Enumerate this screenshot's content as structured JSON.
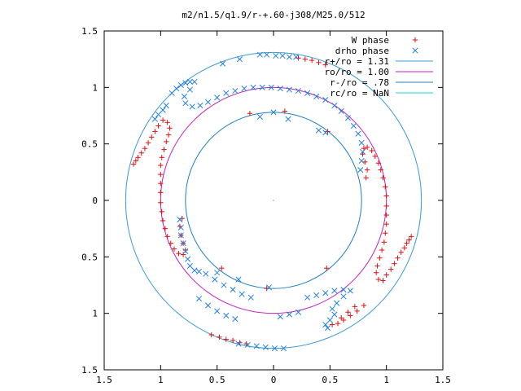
{
  "chart_data": {
    "type": "scatter",
    "title": "m2/n1.5/q1.9/r-+.60-j308/M25.0/512",
    "xlim": [
      -1.5,
      1.5
    ],
    "ylim": [
      -1.5,
      1.5
    ],
    "x_ticks": [
      -1.5,
      -1,
      -0.5,
      0,
      0.5,
      1,
      1.5
    ],
    "y_ticks": [
      -1.5,
      -1,
      -0.5,
      0,
      0.5,
      1,
      1.5
    ],
    "x_tick_labels": [
      "1.5",
      "1",
      "0.5",
      "0",
      "0.5",
      "1",
      "1.5"
    ],
    "y_tick_labels": [
      "1.5",
      "1",
      "0.5",
      "0",
      "0.5",
      "1",
      "1.5"
    ],
    "grid": false,
    "legend_position": "top-right",
    "circles": [
      {
        "name": "r+/ro = 1.31",
        "radius": 1.31,
        "color": "#3a9bd6"
      },
      {
        "name": "ro/ro = 1.00",
        "radius": 1.0,
        "color": "#c020c0"
      },
      {
        "name": "r-/ro = .78",
        "radius": 0.78,
        "color": "#1f7ec0"
      },
      {
        "name": "rc/ro = NaN",
        "radius": null,
        "color": "#20d0d0"
      }
    ],
    "series": [
      {
        "name": "W phase",
        "marker": "plus",
        "color": "#e01010",
        "points": [
          [
            -1.24,
            0.32
          ],
          [
            -1.22,
            0.35
          ],
          [
            -1.2,
            0.38
          ],
          [
            -1.17,
            0.42
          ],
          [
            -1.14,
            0.46
          ],
          [
            -1.11,
            0.51
          ],
          [
            -1.08,
            0.56
          ],
          [
            -1.05,
            0.61
          ],
          [
            -1.02,
            0.66
          ],
          [
            -0.98,
            0.71
          ],
          [
            -0.94,
            0.69
          ],
          [
            -0.92,
            0.64
          ],
          [
            -0.93,
            0.58
          ],
          [
            -0.95,
            0.52
          ],
          [
            -0.97,
            0.45
          ],
          [
            -0.99,
            0.38
          ],
          [
            -1.0,
            0.31
          ],
          [
            -1.0,
            0.23
          ],
          [
            -1.0,
            0.15
          ],
          [
            -1.0,
            0.07
          ],
          [
            -1.0,
            -0.02
          ],
          [
            -0.99,
            -0.1
          ],
          [
            -0.98,
            -0.18
          ],
          [
            -0.96,
            -0.25
          ],
          [
            -0.94,
            -0.32
          ],
          [
            -0.91,
            -0.38
          ],
          [
            -0.88,
            -0.43
          ],
          [
            -0.84,
            -0.47
          ],
          [
            -0.8,
            -0.48
          ],
          [
            -0.78,
            -0.44
          ],
          [
            -0.8,
            -0.38
          ],
          [
            -0.82,
            -0.31
          ],
          [
            -0.83,
            -0.23
          ],
          [
            -0.81,
            -0.16
          ],
          [
            -0.06,
            -0.78
          ],
          [
            0.47,
            -0.6
          ],
          [
            -0.46,
            -0.6
          ],
          [
            -0.21,
            0.77
          ],
          [
            0.48,
            0.61
          ],
          [
            0.1,
            0.79
          ],
          [
            1.22,
            -0.32
          ],
          [
            1.2,
            -0.35
          ],
          [
            1.18,
            -0.38
          ],
          [
            1.16,
            -0.42
          ],
          [
            1.13,
            -0.46
          ],
          [
            1.1,
            -0.51
          ],
          [
            1.07,
            -0.56
          ],
          [
            1.04,
            -0.61
          ],
          [
            1.0,
            -0.66
          ],
          [
            0.97,
            -0.71
          ],
          [
            0.93,
            -0.7
          ],
          [
            0.91,
            -0.64
          ],
          [
            0.92,
            -0.58
          ],
          [
            0.94,
            -0.51
          ],
          [
            0.96,
            -0.44
          ],
          [
            0.98,
            -0.37
          ],
          [
            0.99,
            -0.29
          ],
          [
            1.0,
            -0.21
          ],
          [
            1.0,
            -0.13
          ],
          [
            1.0,
            -0.05
          ],
          [
            1.0,
            0.04
          ],
          [
            0.99,
            0.12
          ],
          [
            0.97,
            0.2
          ],
          [
            0.95,
            0.27
          ],
          [
            0.93,
            0.33
          ],
          [
            0.9,
            0.39
          ],
          [
            0.87,
            0.44
          ],
          [
            0.83,
            0.47
          ],
          [
            0.8,
            0.46
          ],
          [
            0.79,
            0.41
          ],
          [
            0.81,
            0.34
          ],
          [
            0.83,
            0.27
          ],
          [
            0.82,
            0.2
          ],
          [
            0.8,
            -0.93
          ],
          [
            0.74,
            -0.98
          ],
          [
            0.68,
            -1.02
          ],
          [
            0.62,
            -1.06
          ],
          [
            0.57,
            -1.09
          ],
          [
            0.52,
            -1.1
          ],
          [
            0.6,
            -1.04
          ],
          [
            0.66,
            -0.99
          ],
          [
            0.72,
            -0.94
          ],
          [
            -0.55,
            -1.19
          ],
          [
            -0.48,
            -1.21
          ],
          [
            -0.42,
            -1.23
          ],
          [
            -0.36,
            -1.24
          ],
          [
            -0.3,
            -1.26
          ],
          [
            -0.24,
            -1.27
          ],
          [
            0.22,
            1.26
          ],
          [
            0.28,
            1.25
          ],
          [
            0.34,
            1.24
          ],
          [
            0.4,
            1.22
          ],
          [
            0.46,
            1.2
          ]
        ]
      },
      {
        "name": "drho phase",
        "marker": "cross",
        "color": "#2080e0",
        "points": [
          [
            -0.9,
            0.95
          ],
          [
            -0.86,
            0.99
          ],
          [
            -0.82,
            1.02
          ],
          [
            -0.78,
            1.04
          ],
          [
            -0.74,
            1.05
          ],
          [
            -0.7,
            1.05
          ],
          [
            -0.74,
            0.98
          ],
          [
            -0.79,
            0.92
          ],
          [
            -0.78,
            0.86
          ],
          [
            -0.72,
            0.83
          ],
          [
            -0.65,
            0.84
          ],
          [
            -0.58,
            0.87
          ],
          [
            -0.5,
            0.91
          ],
          [
            -0.42,
            0.95
          ],
          [
            -0.34,
            0.97
          ],
          [
            -0.26,
            0.99
          ],
          [
            -0.18,
            1.0
          ],
          [
            -0.1,
            1.0
          ],
          [
            -0.02,
            1.0
          ],
          [
            0.06,
            0.99
          ],
          [
            0.14,
            0.98
          ],
          [
            0.22,
            0.97
          ],
          [
            0.3,
            0.95
          ],
          [
            0.38,
            0.92
          ],
          [
            0.46,
            0.89
          ],
          [
            0.54,
            0.84
          ],
          [
            0.6,
            0.79
          ],
          [
            0.66,
            0.73
          ],
          [
            0.71,
            0.66
          ],
          [
            0.75,
            0.59
          ],
          [
            0.78,
            0.51
          ],
          [
            0.79,
            0.43
          ],
          [
            0.78,
            0.35
          ],
          [
            0.77,
            0.27
          ],
          [
            -1.05,
            0.72
          ],
          [
            -1.02,
            0.76
          ],
          [
            -0.98,
            0.8
          ],
          [
            -0.95,
            0.84
          ],
          [
            -0.83,
            -0.17
          ],
          [
            -0.82,
            -0.24
          ],
          [
            -0.82,
            -0.31
          ],
          [
            -0.8,
            -0.38
          ],
          [
            -0.78,
            -0.45
          ],
          [
            -0.76,
            -0.52
          ],
          [
            -0.74,
            -0.58
          ],
          [
            -0.7,
            -0.62
          ],
          [
            -0.66,
            -0.63
          ],
          [
            -0.6,
            -0.65
          ],
          [
            -0.52,
            -0.7
          ],
          [
            -0.44,
            -0.75
          ],
          [
            -0.36,
            -0.79
          ],
          [
            -0.28,
            -0.83
          ],
          [
            -0.2,
            -0.86
          ],
          [
            0.3,
            -0.86
          ],
          [
            0.38,
            -0.84
          ],
          [
            0.46,
            -0.82
          ],
          [
            0.54,
            -0.8
          ],
          [
            0.62,
            -0.79
          ],
          [
            0.68,
            -0.8
          ],
          [
            0.62,
            -0.85
          ],
          [
            0.56,
            -0.91
          ],
          [
            0.52,
            -0.96
          ],
          [
            0.54,
            -1.01
          ],
          [
            0.5,
            -1.06
          ],
          [
            0.46,
            -1.1
          ],
          [
            0.48,
            -1.13
          ],
          [
            0.09,
            -1.31
          ],
          [
            0.01,
            -1.31
          ],
          [
            -0.07,
            -1.3
          ],
          [
            -0.15,
            -1.29
          ],
          [
            -0.23,
            -1.28
          ],
          [
            -0.31,
            -1.27
          ],
          [
            -0.34,
            -1.05
          ],
          [
            -0.42,
            -1.02
          ],
          [
            -0.5,
            -0.98
          ],
          [
            -0.58,
            -0.93
          ],
          [
            -0.66,
            -0.87
          ],
          [
            0.06,
            -1.03
          ],
          [
            0.14,
            -1.01
          ],
          [
            0.22,
            -0.99
          ],
          [
            0.02,
            1.28
          ],
          [
            0.08,
            1.28
          ],
          [
            0.14,
            1.27
          ],
          [
            0.2,
            1.27
          ],
          [
            -0.06,
            1.29
          ],
          [
            -0.12,
            1.29
          ],
          [
            -0.3,
            1.25
          ],
          [
            -0.45,
            1.21
          ],
          [
            0.13,
            0.72
          ],
          [
            0.46,
            0.6
          ],
          [
            -0.5,
            -0.64
          ],
          [
            -0.12,
            0.74
          ],
          [
            0.0,
            0.78
          ],
          [
            -0.31,
            -0.7
          ],
          [
            -0.04,
            -0.77
          ],
          [
            0.4,
            0.62
          ]
        ]
      }
    ]
  }
}
